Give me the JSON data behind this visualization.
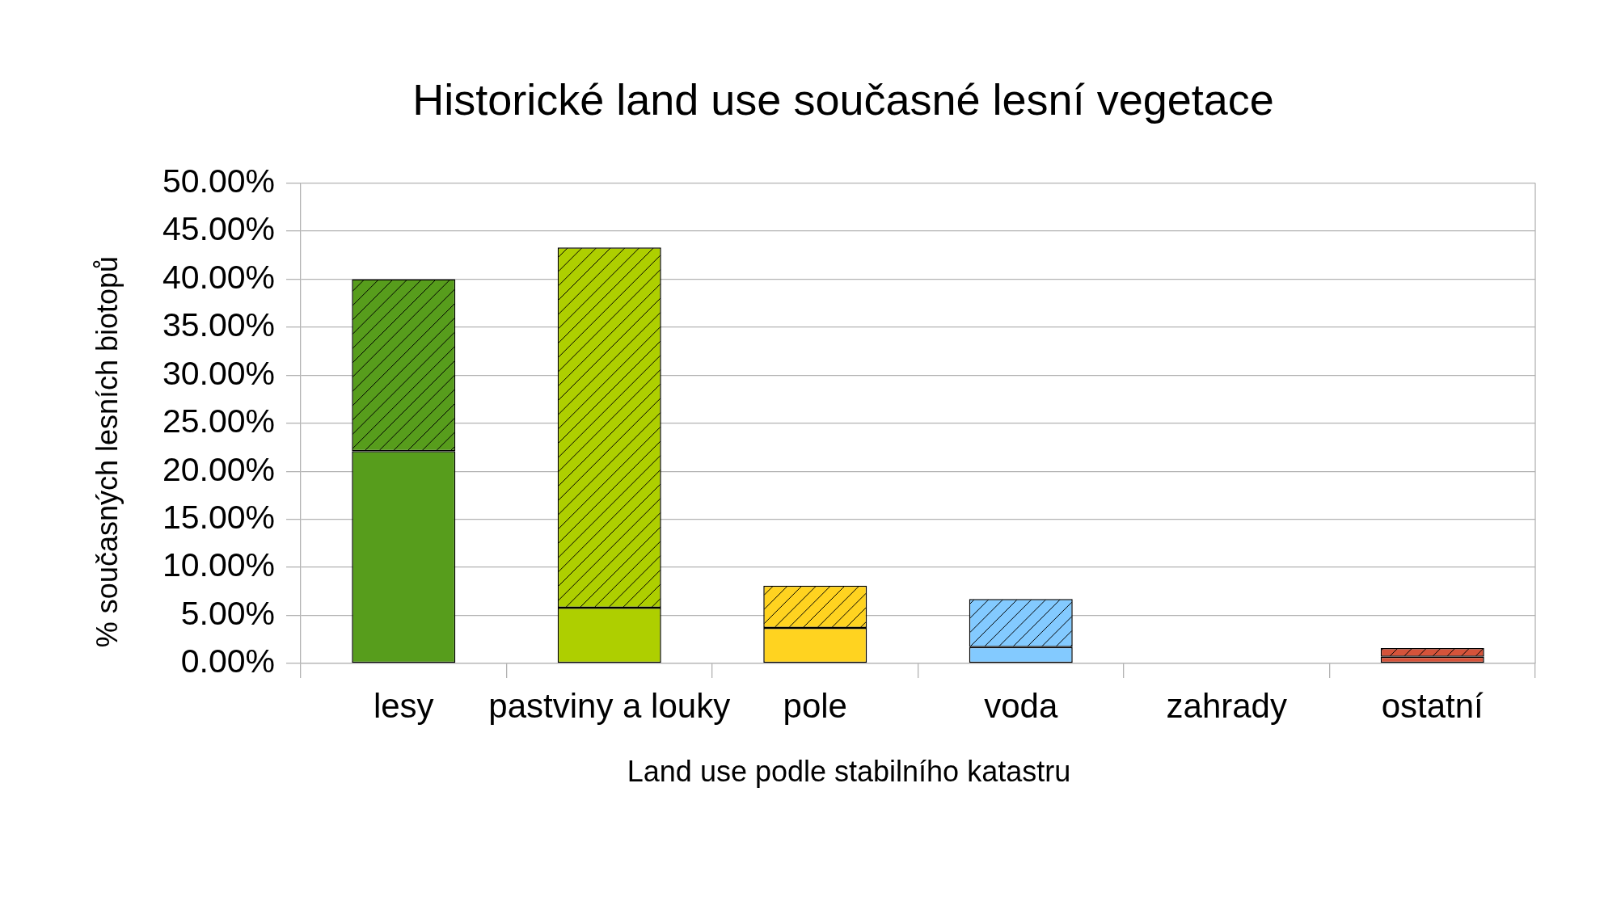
{
  "chart_data": {
    "type": "bar",
    "title": "Historické land use současné lesní vegetace",
    "xlabel": "Land use podle stabilního katastru",
    "ylabel": "% současných lesních biotopů",
    "categories": [
      "lesy",
      "pastviny a louky",
      "pole",
      "voda",
      "zahrady",
      "ostatní"
    ],
    "stacked": true,
    "series": [
      {
        "colors": [
          "#579d1c",
          "#aecf00",
          "#ffd320",
          "#83caff",
          "#000000",
          "#d5533a"
        ],
        "values": [
          22.1,
          5.8,
          3.7,
          1.7,
          0,
          0.7
        ]
      },
      {
        "colors": [
          "#579d1c",
          "#aecf00",
          "#ffd320",
          "#83caff",
          "#000000",
          "#d5533a"
        ],
        "values": [
          17.9,
          37.5,
          4.4,
          5.0,
          0,
          0.9
        ]
      }
    ],
    "ylim": [
      0,
      50
    ],
    "yticks": [
      {
        "value": 0,
        "label": "0.00%"
      },
      {
        "value": 5,
        "label": "5.00%"
      },
      {
        "value": 10,
        "label": "10.00%"
      },
      {
        "value": 15,
        "label": "15.00%"
      },
      {
        "value": 20,
        "label": "20.00%"
      },
      {
        "value": 25,
        "label": "25.00%"
      },
      {
        "value": 30,
        "label": "30.00%"
      },
      {
        "value": 35,
        "label": "35.00%"
      },
      {
        "value": 40,
        "label": "40.00%"
      },
      {
        "value": 45,
        "label": "45.00%"
      },
      {
        "value": 50,
        "label": "50.00%"
      }
    ],
    "grid": "y",
    "legend": false
  }
}
